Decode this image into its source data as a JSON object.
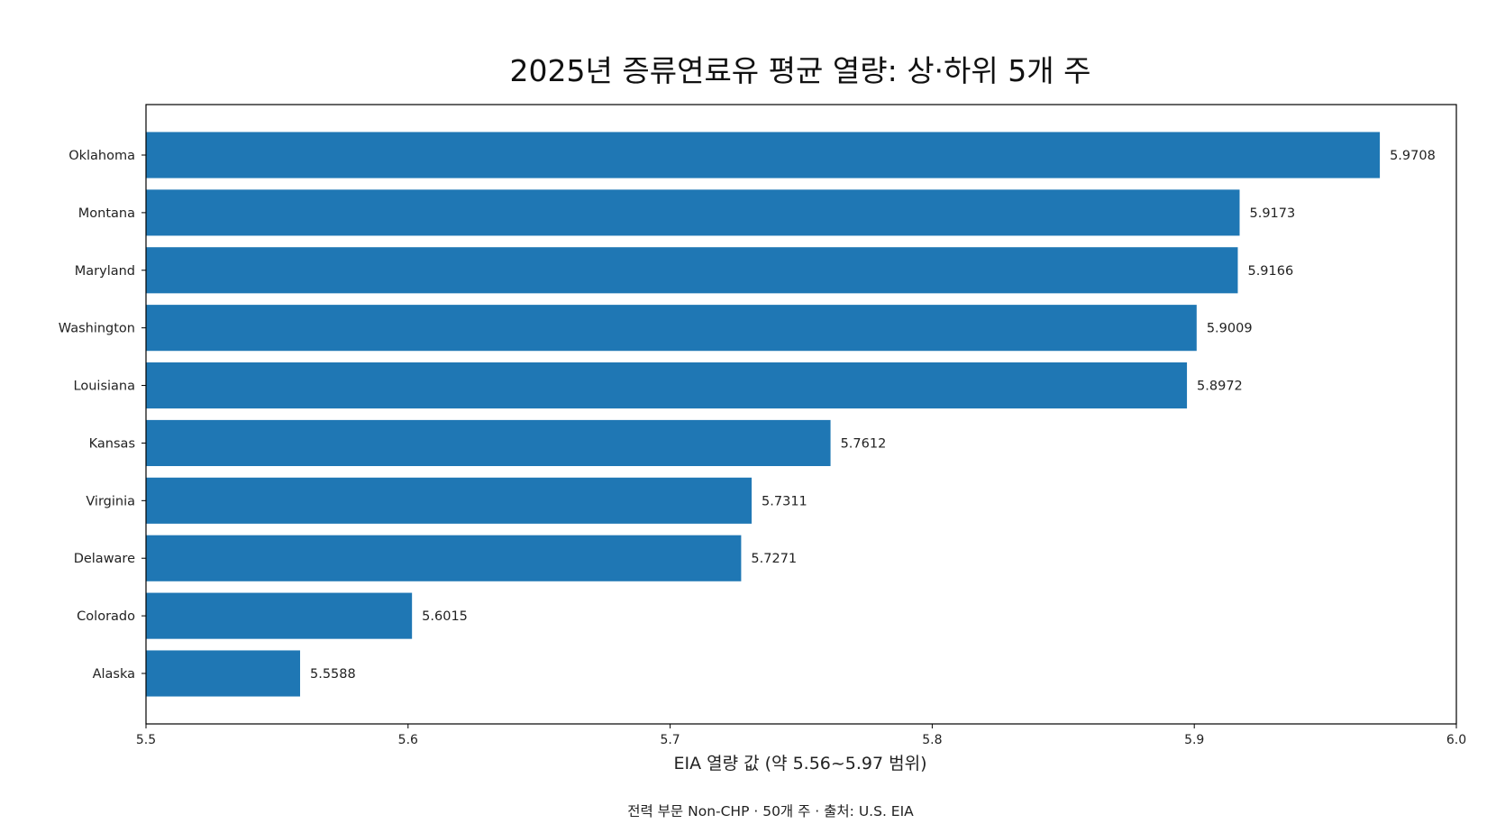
{
  "chart_data": {
    "type": "bar",
    "orientation": "horizontal",
    "title": "2025년 증류연료유 평균 열량: 상·하위 5개 주",
    "xlabel": "EIA 열량 값 (약 5.56~5.97 범위)",
    "ylabel": "",
    "footnote": "전력 부문 Non-CHP · 50개 주 · 출처: U.S. EIA",
    "categories": [
      "Oklahoma",
      "Montana",
      "Maryland",
      "Washington",
      "Louisiana",
      "Kansas",
      "Virginia",
      "Delaware",
      "Colorado",
      "Alaska"
    ],
    "values": [
      5.9708,
      5.9173,
      5.9166,
      5.9009,
      5.8972,
      5.7612,
      5.7311,
      5.7271,
      5.6015,
      5.5588
    ],
    "data_labels": [
      "5.9708",
      "5.9173",
      "5.9166",
      "5.9009",
      "5.8972",
      "5.7612",
      "5.7311",
      "5.7271",
      "5.6015",
      "5.5588"
    ],
    "xlim": [
      5.5,
      6.0
    ],
    "xticks": [
      5.5,
      5.6,
      5.7,
      5.8,
      5.9,
      6.0
    ],
    "xtick_labels": [
      "5.5",
      "5.6",
      "5.7",
      "5.8",
      "5.9",
      "6.0"
    ],
    "grid": false,
    "legend": "none",
    "bar_color": "#1f77b4"
  }
}
